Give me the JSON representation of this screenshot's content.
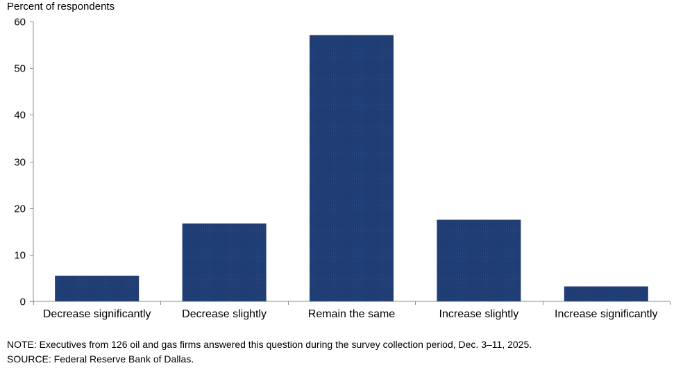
{
  "chart_data": {
    "type": "bar",
    "title": "",
    "ylabel": "Percent of respondents",
    "xlabel": "",
    "categories": [
      "Decrease significantly",
      "Decrease slightly",
      "Remain the same",
      "Increase slightly",
      "Increase significantly"
    ],
    "values": [
      5.5,
      16.7,
      57.1,
      17.5,
      3.2
    ],
    "ylim": [
      0,
      60
    ],
    "yticks": [
      0,
      10,
      20,
      30,
      40,
      50,
      60
    ],
    "grid": false,
    "bar_color": "#1f3c73"
  },
  "footnotes": {
    "note": "NOTE:  Executives  from  126  oil  and  gas  firms  answered  this  question  during  the  survey  collection  period,  Dec.  3–11,  2025.",
    "source": "SOURCE:  Federal  Reserve  Bank  of  Dallas."
  }
}
